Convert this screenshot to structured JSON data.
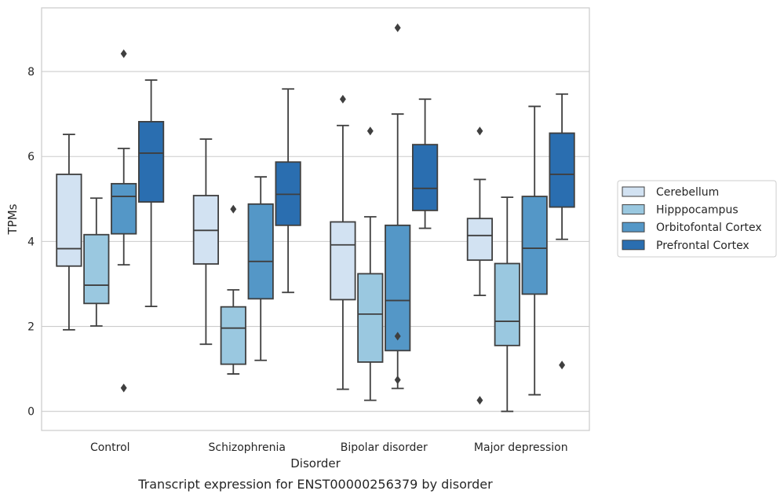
{
  "chart_data": {
    "type": "box",
    "caption": "Transcript expression for ENST00000256379 by disorder",
    "xlabel": "Disorder",
    "ylabel": "TPMs",
    "ylim": [
      -0.45,
      9.5
    ],
    "yticks": [
      0,
      2,
      4,
      6,
      8
    ],
    "grid": "horizontal",
    "legend_position": "right",
    "categories": [
      "Control",
      "Schizophrenia",
      "Bipolar disorder",
      "Major depression"
    ],
    "series": [
      {
        "name": "Cerebellum",
        "color": "#d2e2f2",
        "boxes": [
          {
            "whisker_low": 1.92,
            "q1": 3.42,
            "median": 3.83,
            "q3": 5.58,
            "whisker_high": 6.52,
            "outliers": []
          },
          {
            "whisker_low": 1.58,
            "q1": 3.47,
            "median": 4.26,
            "q3": 5.08,
            "whisker_high": 6.41,
            "outliers": []
          },
          {
            "whisker_low": 0.52,
            "q1": 2.63,
            "median": 3.92,
            "q3": 4.46,
            "whisker_high": 6.73,
            "outliers": [
              7.35
            ]
          },
          {
            "whisker_low": 2.73,
            "q1": 3.56,
            "median": 4.14,
            "q3": 4.54,
            "whisker_high": 5.46,
            "outliers": [
              6.6,
              0.26
            ]
          }
        ]
      },
      {
        "name": "Hipppocampus",
        "color": "#9ac8e0",
        "boxes": [
          {
            "whisker_low": 2.01,
            "q1": 2.54,
            "median": 2.97,
            "q3": 4.16,
            "whisker_high": 5.02,
            "outliers": []
          },
          {
            "whisker_low": 0.88,
            "q1": 1.11,
            "median": 1.96,
            "q3": 2.46,
            "whisker_high": 2.86,
            "outliers": [
              4.76
            ]
          },
          {
            "whisker_low": 0.26,
            "q1": 1.16,
            "median": 2.29,
            "q3": 3.24,
            "whisker_high": 4.58,
            "outliers": [
              6.6
            ]
          },
          {
            "whisker_low": 0.0,
            "q1": 1.55,
            "median": 2.12,
            "q3": 3.48,
            "whisker_high": 5.04,
            "outliers": []
          }
        ]
      },
      {
        "name": "Orbitofontal Cortex",
        "color": "#5497c7",
        "boxes": [
          {
            "whisker_low": 3.45,
            "q1": 4.18,
            "median": 5.06,
            "q3": 5.36,
            "whisker_high": 6.19,
            "outliers": [
              8.42,
              0.55
            ]
          },
          {
            "whisker_low": 1.2,
            "q1": 2.65,
            "median": 3.53,
            "q3": 4.88,
            "whisker_high": 5.52,
            "outliers": []
          },
          {
            "whisker_low": 0.54,
            "q1": 1.43,
            "median": 2.61,
            "q3": 4.38,
            "whisker_high": 7.0,
            "outliers": [
              9.03,
              1.77,
              0.74
            ]
          },
          {
            "whisker_low": 0.39,
            "q1": 2.76,
            "median": 3.84,
            "q3": 5.06,
            "whisker_high": 7.18,
            "outliers": []
          }
        ]
      },
      {
        "name": "Prefrontal Cortex",
        "color": "#2a6eb0",
        "boxes": [
          {
            "whisker_low": 2.47,
            "q1": 4.93,
            "median": 6.08,
            "q3": 6.82,
            "whisker_high": 7.8,
            "outliers": []
          },
          {
            "whisker_low": 2.8,
            "q1": 4.38,
            "median": 5.11,
            "q3": 5.87,
            "whisker_high": 7.59,
            "outliers": []
          },
          {
            "whisker_low": 4.31,
            "q1": 4.73,
            "median": 5.25,
            "q3": 6.28,
            "whisker_high": 7.35,
            "outliers": []
          },
          {
            "whisker_low": 4.05,
            "q1": 4.81,
            "median": 5.58,
            "q3": 6.55,
            "whisker_high": 7.47,
            "outliers": [
              1.09
            ]
          }
        ]
      }
    ]
  }
}
